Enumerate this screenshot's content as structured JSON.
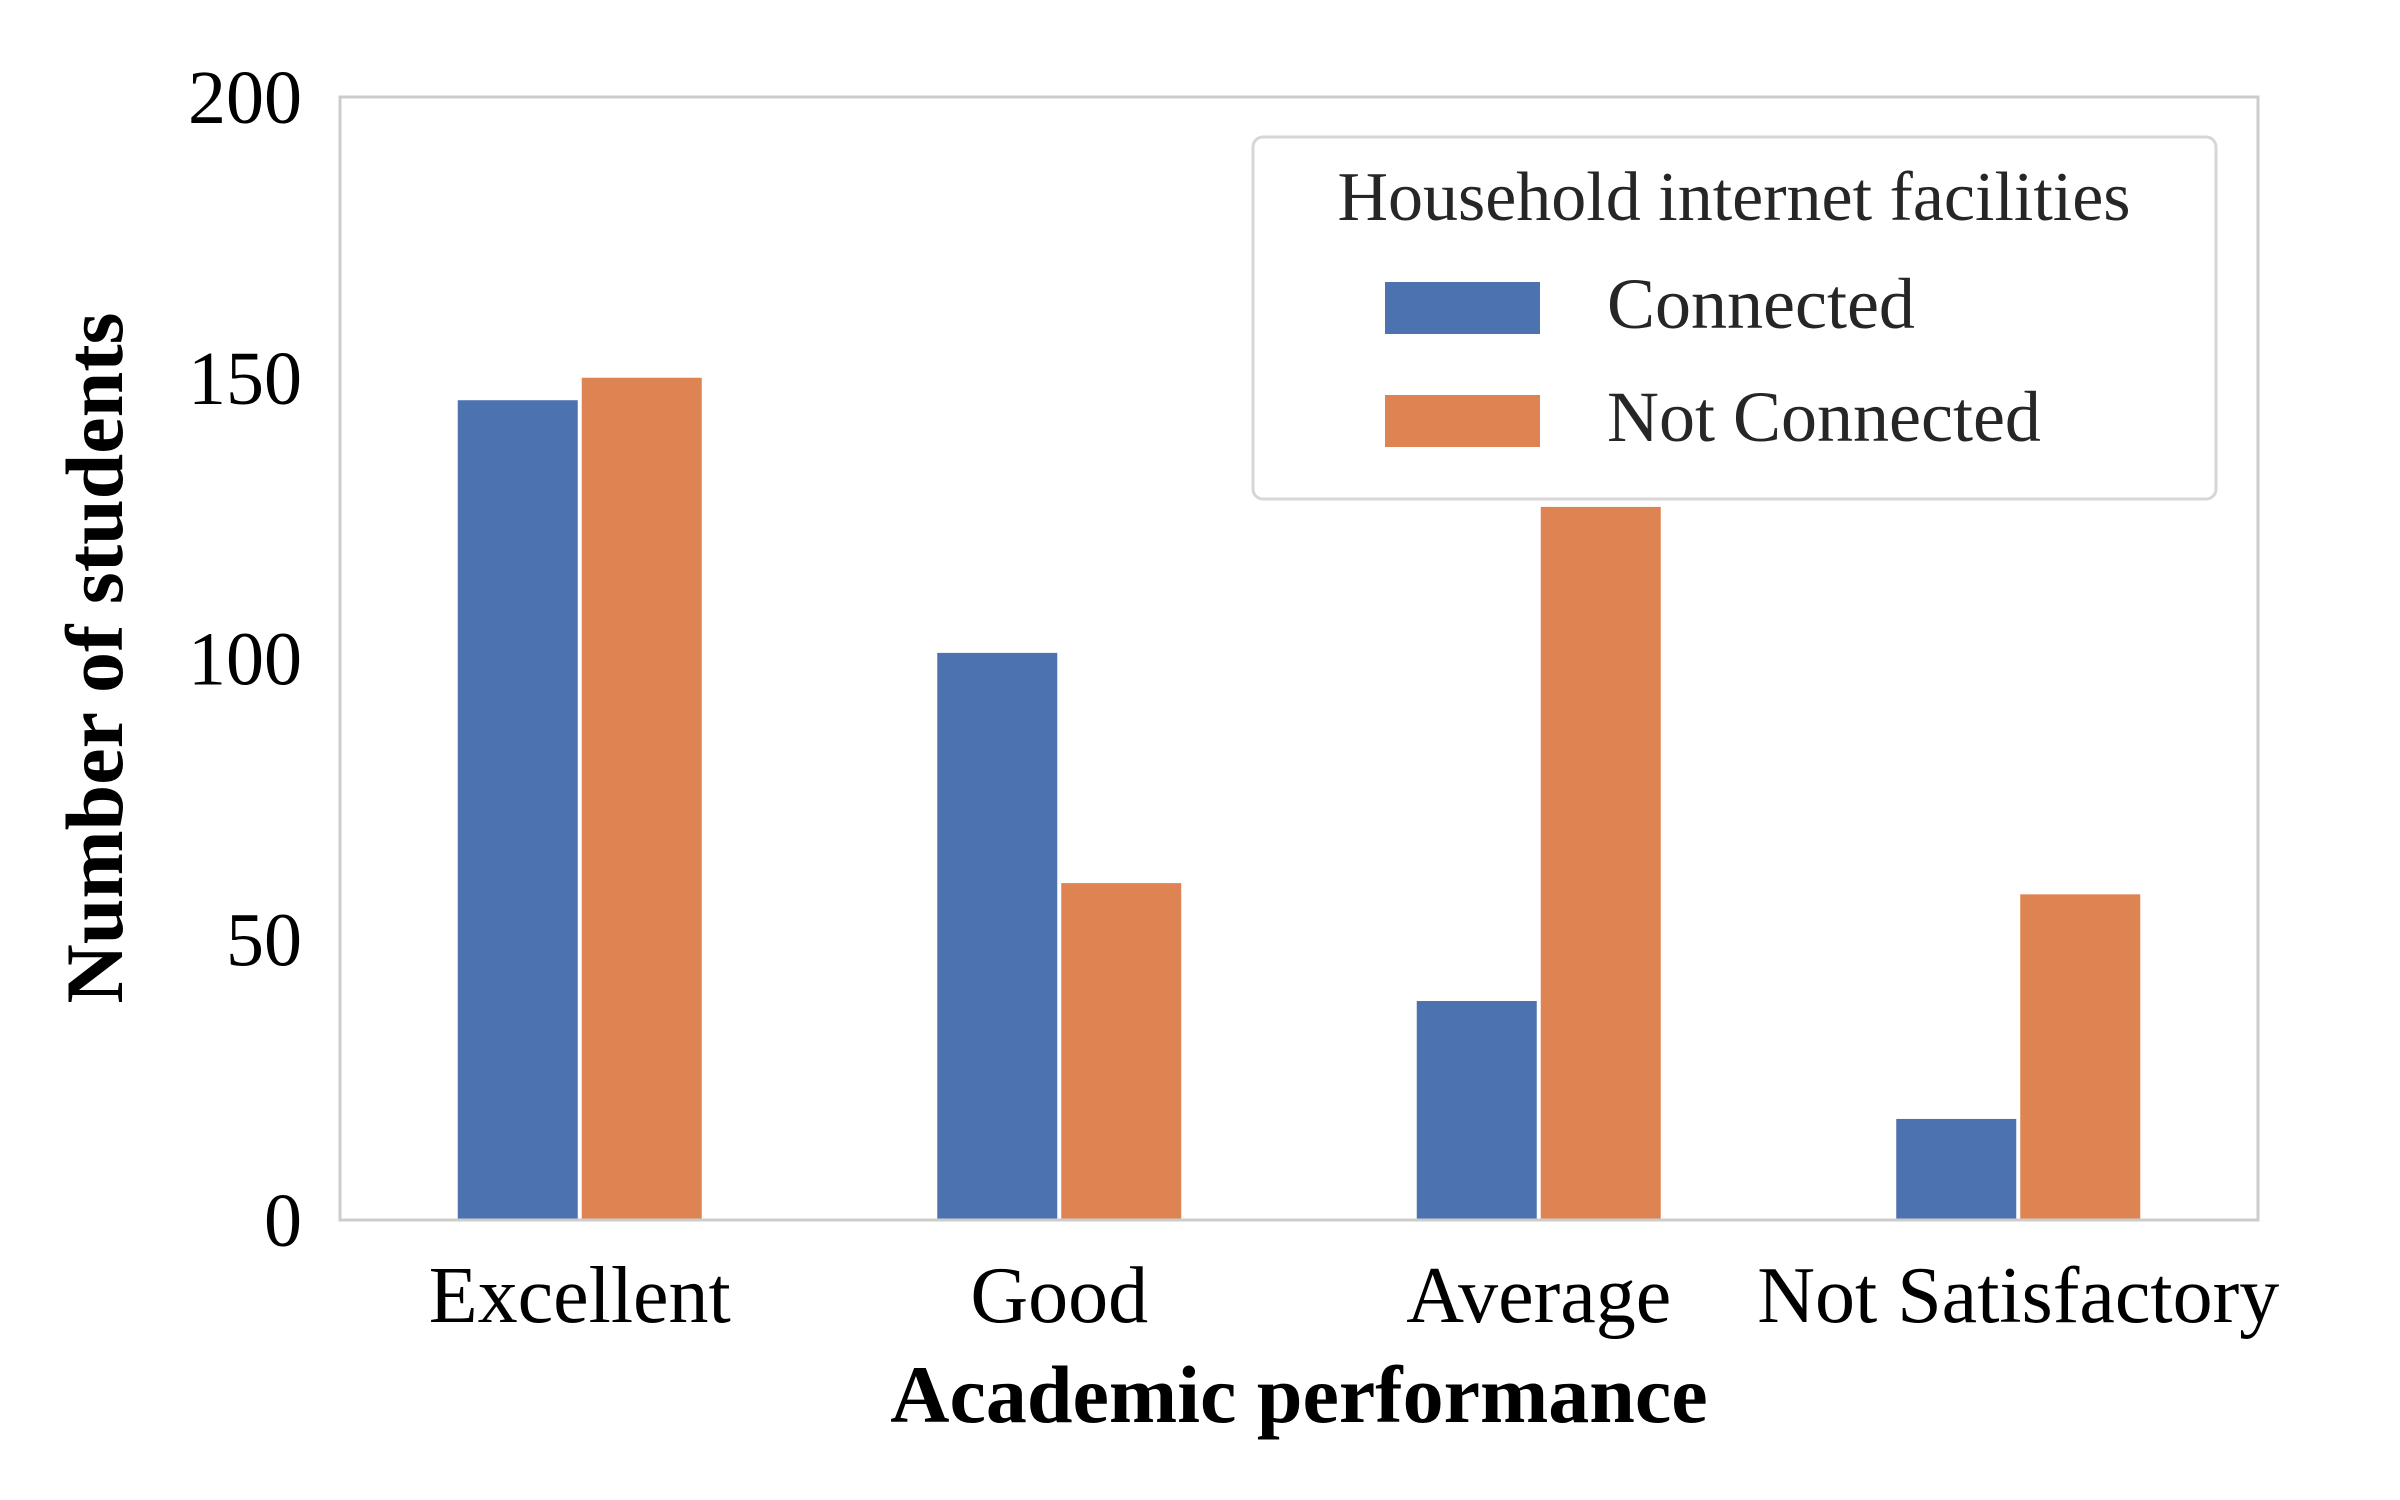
{
  "chart_data": {
    "type": "bar",
    "xlabel": "Academic performance",
    "ylabel": "Number of students",
    "categories": [
      "Excellent",
      "Good",
      "Average",
      "Not Satisfactory"
    ],
    "series": [
      {
        "name": "Connected",
        "values": [
          146,
          101,
          39,
          18
        ],
        "color": "#4c72b0"
      },
      {
        "name": "Not Connected",
        "values": [
          150,
          60,
          127,
          58
        ],
        "color": "#dd8452"
      }
    ],
    "ylim": [
      0,
      200
    ],
    "yticks": [
      0,
      50,
      100,
      150,
      200
    ],
    "legend": {
      "title": "Household internet facilities",
      "position": "top-right"
    },
    "grid": false
  }
}
